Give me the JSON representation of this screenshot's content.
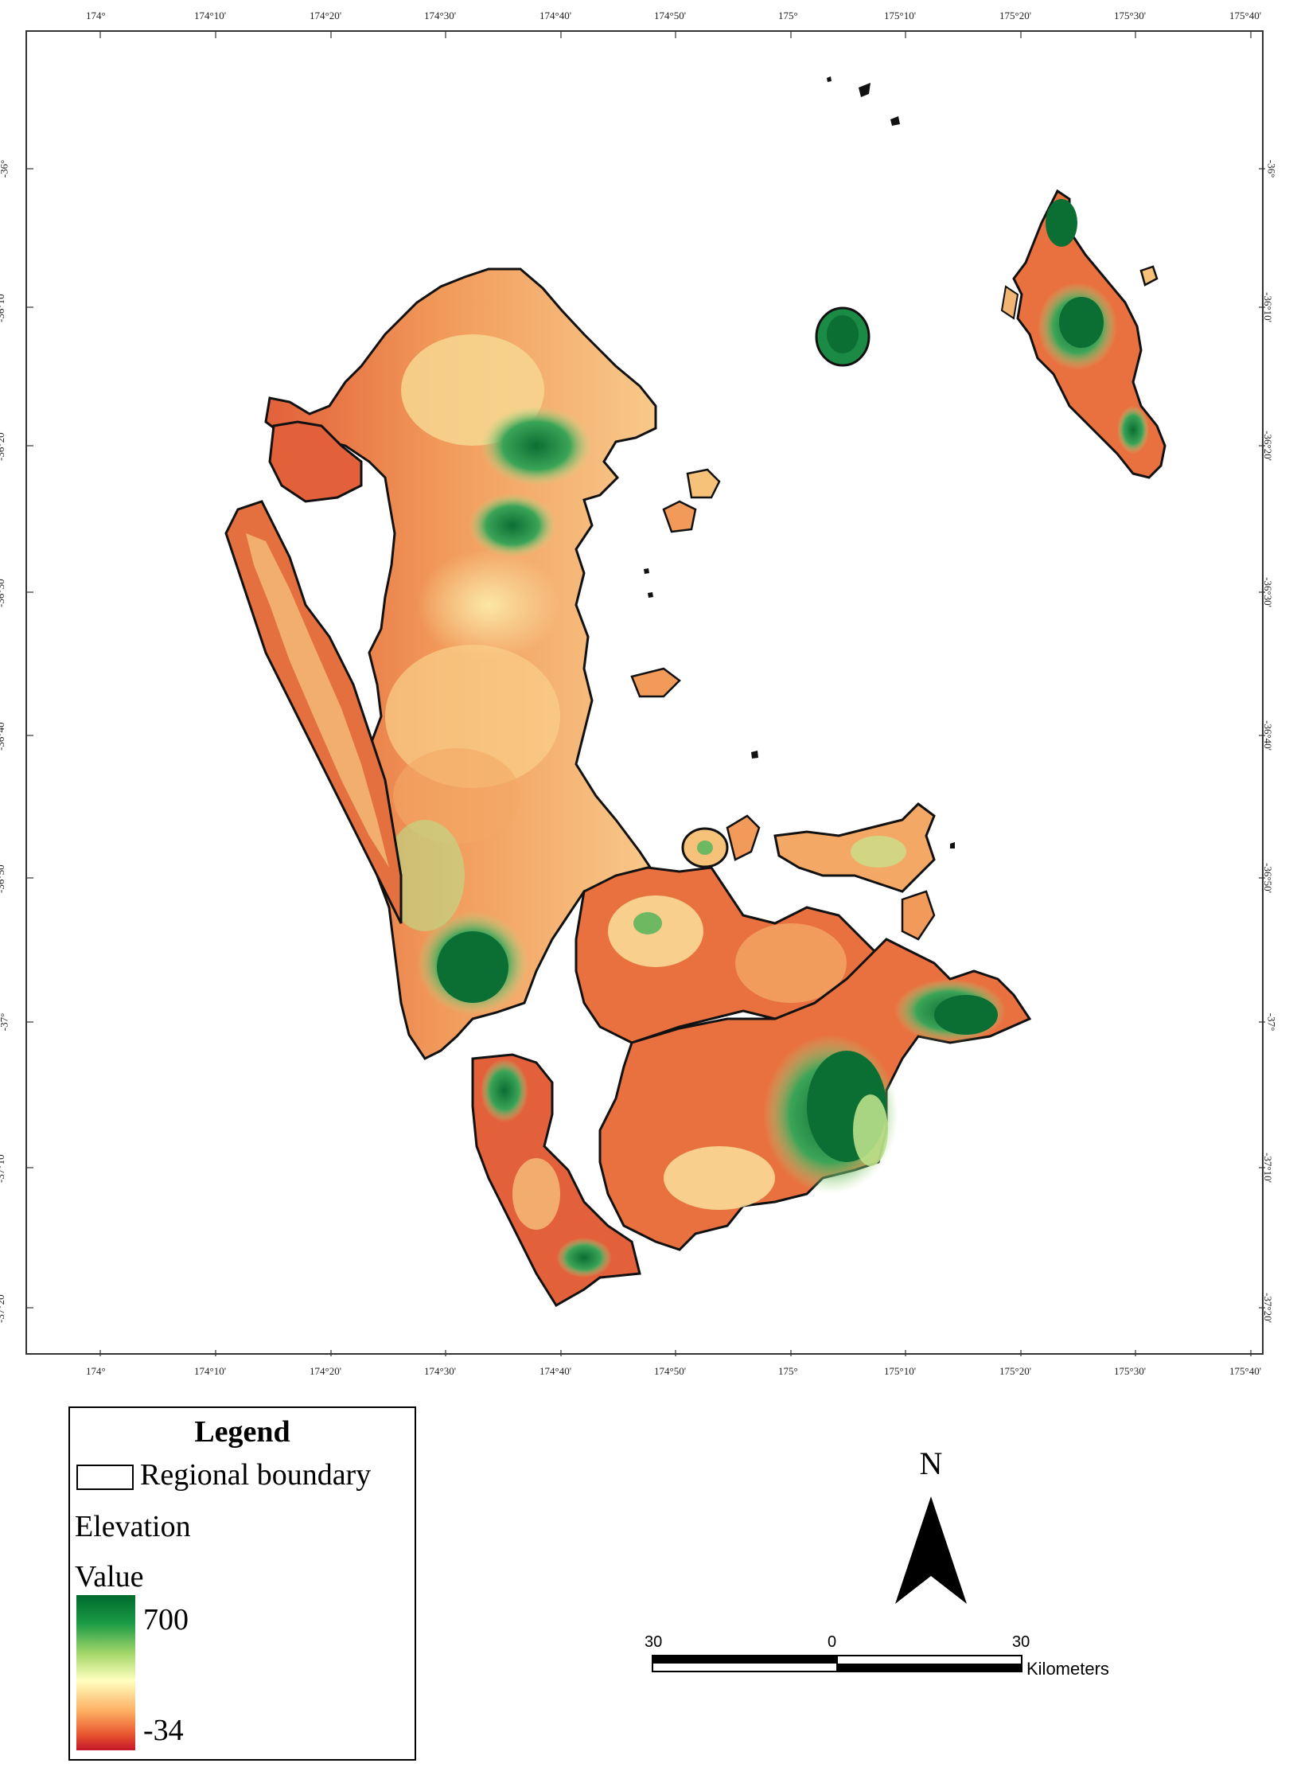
{
  "map": {
    "top_axis_labels": [
      "174°",
      "174°10'",
      "174°20'",
      "174°30'",
      "174°40'",
      "174°50'",
      "175°",
      "175°10'",
      "175°20'",
      "175°30'",
      "175°40'"
    ],
    "bottom_axis_labels": [
      "174°",
      "174°10'",
      "174°20'",
      "174°30'",
      "174°40'",
      "174°50'",
      "175°",
      "175°10'",
      "175°20'",
      "175°30'",
      "175°40'"
    ],
    "left_axis_labels": [
      "-36°",
      "-36°10'",
      "-36°20'",
      "-36°30'",
      "-36°40'",
      "-36°50'",
      "-37°",
      "-37°10'",
      "-37°20'"
    ],
    "right_axis_labels": [
      "-36°",
      "-36°10'",
      "-36°20'",
      "-36°30'",
      "-36°40'",
      "-36°50'",
      "-37°",
      "-37°10'",
      "-37°20'"
    ]
  },
  "legend": {
    "title": "Legend",
    "boundary_label": "Regional boundary",
    "elevation_label": "Elevation",
    "value_label": "Value",
    "max_value": "700",
    "min_value": "-34",
    "ramp_colors": [
      "#006b2e",
      "#1a9a45",
      "#a6d86b",
      "#ffffbf",
      "#fdae61",
      "#e8552f",
      "#c4162a"
    ]
  },
  "north_arrow": {
    "letter": "N"
  },
  "scale_bar": {
    "left_label": "30",
    "mid_label": "0",
    "right_label": "30",
    "unit": "Kilometers"
  },
  "colors": {
    "deep_green": "#0b6e33",
    "green": "#3aa457",
    "light_green": "#b9e08a",
    "cream": "#fbe7a6",
    "orange": "#f19a5a",
    "red_orange": "#e2603a",
    "boundary": "#111111"
  }
}
